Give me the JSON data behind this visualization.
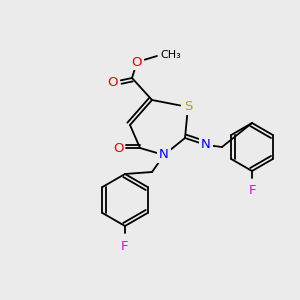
{
  "bg_color": "#ebebeb",
  "atom_colors": {
    "C": "#000000",
    "N": "#0000ee",
    "O": "#ee0000",
    "S": "#aaaa00",
    "F": "#ee00ee"
  },
  "bond_color": "#000000",
  "figsize": [
    3.0,
    3.0
  ],
  "dpi": 100,
  "lw": 1.3,
  "font_size": 9.5
}
